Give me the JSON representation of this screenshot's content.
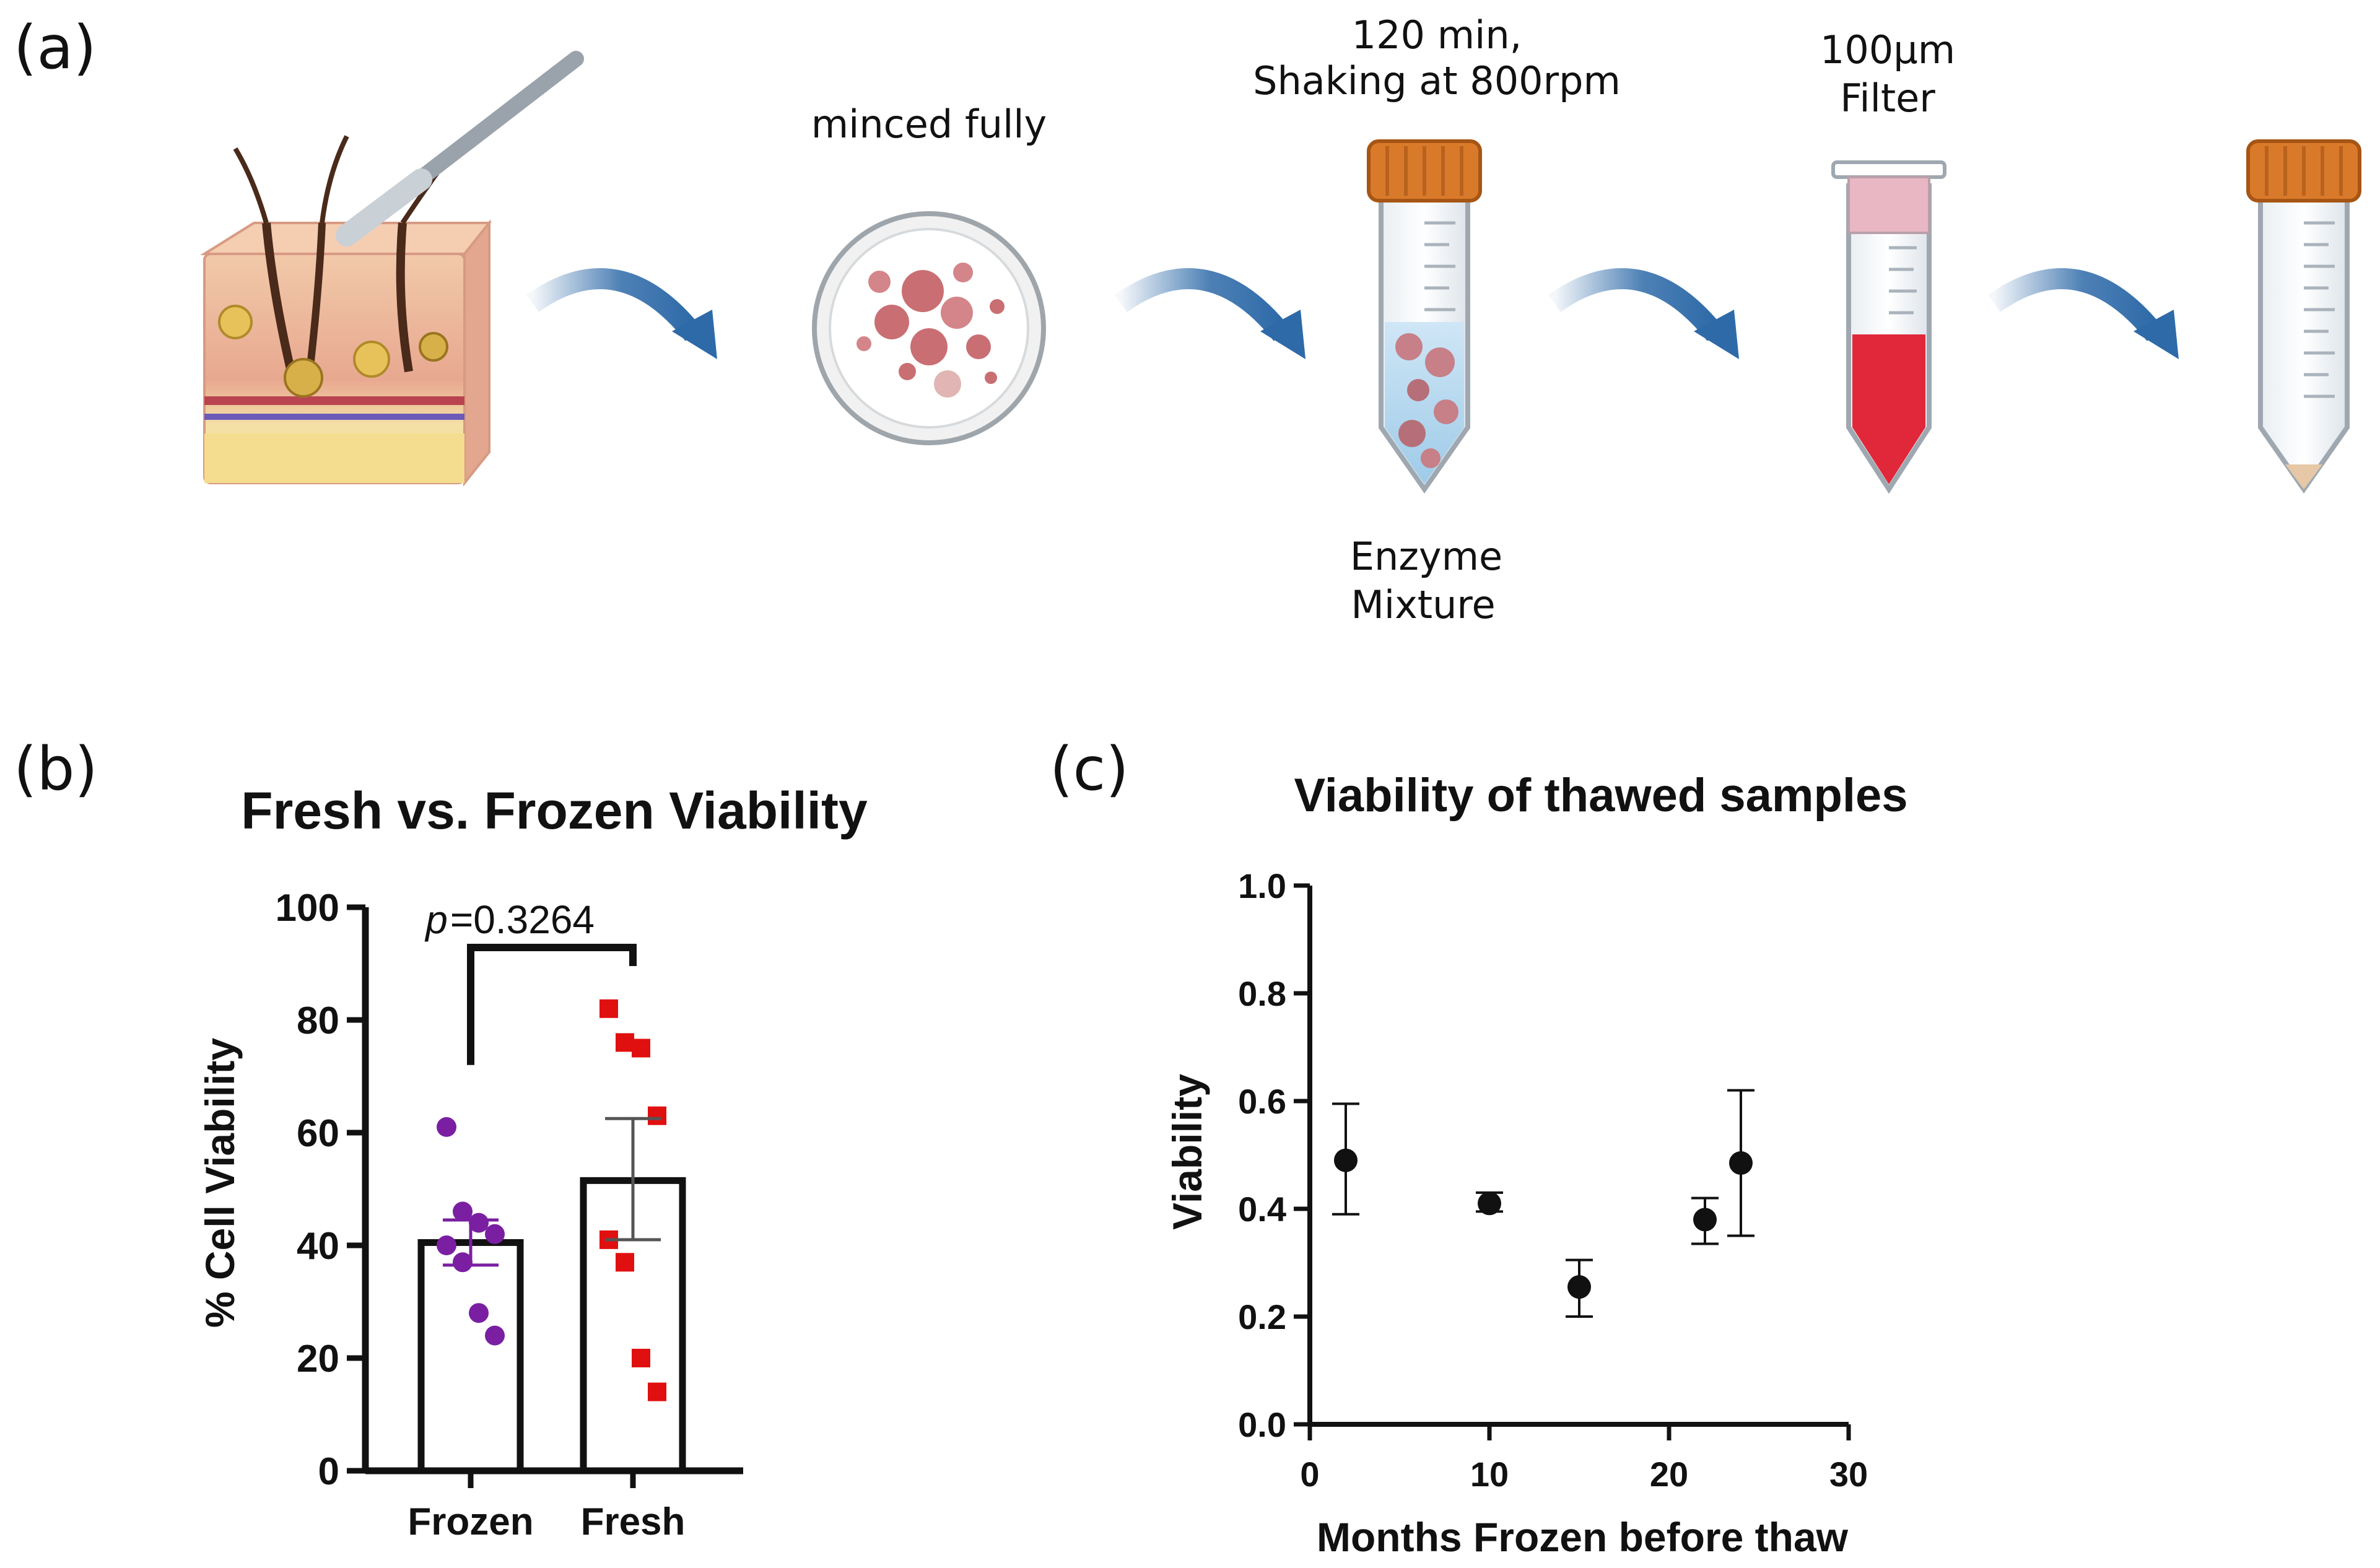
{
  "panel_labels": {
    "a": "(a)",
    "b": "(b)",
    "c": "(c)"
  },
  "workflow": {
    "step_minced": "minced fully",
    "step_incubation_line1": "120 min,",
    "step_incubation_line2": "Shaking at 800rpm",
    "step_enzyme_line1": "Enzyme",
    "step_enzyme_line2": "Mixture",
    "step_filter_line1": "100μm",
    "step_filter_line2": "Filter",
    "icons": [
      "skin-tissue-scalpel",
      "petri-dish",
      "tube-enzyme",
      "tube-filter",
      "tube-empty"
    ],
    "colors": {
      "arrow": "#2e6aa8",
      "cap": "#d97a2b",
      "blood": "#e0283a",
      "tissue": "#c96f73"
    }
  },
  "chart_data": [
    {
      "type": "bar",
      "title": "Fresh vs. Frozen Viability",
      "xlabel": "",
      "ylabel": "% Cell Viability",
      "ylim": [
        0,
        100
      ],
      "yticks": [
        "0",
        "20",
        "40",
        "60",
        "80",
        "100"
      ],
      "categories": [
        "Frozen",
        "Fresh"
      ],
      "means": [
        40.5,
        51.5
      ],
      "sem_low": [
        36.5,
        41.0
      ],
      "sem_high": [
        44.5,
        62.5
      ],
      "points": [
        {
          "series": "Frozen",
          "color": "#7a1fa2",
          "marker": "circle",
          "values": [
            61,
            46,
            44,
            42,
            40,
            37,
            28,
            24
          ]
        },
        {
          "series": "Fresh",
          "color": "#e01010",
          "marker": "square",
          "values": [
            82,
            76,
            75,
            63,
            41,
            37,
            20,
            14
          ]
        }
      ],
      "annotation": {
        "p_symbol": "p",
        "p_value": "=0.3264"
      }
    },
    {
      "type": "scatter",
      "title": "Viability of thawed samples",
      "xlabel": "Months Frozen before thaw",
      "ylabel": "Viability",
      "xlim": [
        0,
        30
      ],
      "ylim": [
        0,
        1
      ],
      "xticks": [
        "0",
        "10",
        "20",
        "30"
      ],
      "yticks": [
        "0.0",
        "0.2",
        "0.4",
        "0.6",
        "0.8",
        "1.0"
      ],
      "x": [
        2,
        10,
        15,
        22,
        24
      ],
      "y": [
        0.49,
        0.41,
        0.255,
        0.38,
        0.485
      ],
      "err_low": [
        0.39,
        0.395,
        0.2,
        0.335,
        0.35
      ],
      "err_high": [
        0.595,
        0.43,
        0.305,
        0.42,
        0.62
      ]
    }
  ]
}
